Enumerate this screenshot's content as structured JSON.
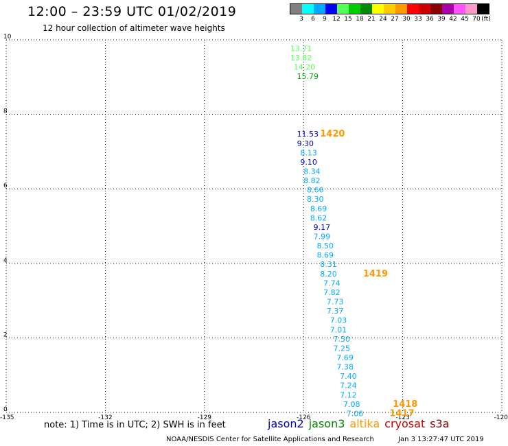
{
  "header": {
    "title": "12:00 – 23:59 UTC 01/02/2019",
    "subtitle": "12 hour collection of altimeter wave heights"
  },
  "colorbar": {
    "unit": "(ft)",
    "labels": [
      "3",
      "6",
      "9",
      "12",
      "15",
      "18",
      "21",
      "24",
      "27",
      "30",
      "33",
      "36",
      "39",
      "42",
      "45",
      "70"
    ],
    "colors": [
      "#808080",
      "#00ffff",
      "#00aaff",
      "#0000ff",
      "#55ff55",
      "#00cc00",
      "#008800",
      "#ffff00",
      "#ffcc00",
      "#ff9900",
      "#ff0000",
      "#cc0000",
      "#880000",
      "#aa00aa",
      "#ff55ff",
      "#ff99cc",
      "#000000"
    ]
  },
  "footer": {
    "note": "note: 1) Time is in UTC; 2) SWH is in feet",
    "legend": [
      {
        "name": "jason2",
        "color": "#0000cc"
      },
      {
        "name": "jason3",
        "color": "#008800"
      },
      {
        "name": "altika",
        "color": "#ff9900"
      },
      {
        "name": "cryosat",
        "color": "#cc0000"
      },
      {
        "name": "s3a",
        "color": "#880000"
      }
    ],
    "credit": "NOAA/NESDIS Center for Satellite Applications and Research",
    "timestamp": "Jan  3 13:27:47 UTC 2019"
  },
  "chart_data": {
    "type": "scatter",
    "xlim": [
      -135,
      -120
    ],
    "ylim": [
      0,
      10
    ],
    "x_ticks": [
      "-135",
      "-132",
      "-129",
      "-126",
      "-123",
      "-120"
    ],
    "y_ticks": [
      "0",
      "2",
      "4",
      "6",
      "8",
      "10"
    ],
    "grid": true,
    "points": [
      {
        "x": -126.4,
        "y": 9.7,
        "label": "13.71",
        "color": "#55ff55"
      },
      {
        "x": -126.4,
        "y": 9.45,
        "label": "13.82",
        "color": "#55ff55"
      },
      {
        "x": -126.3,
        "y": 9.2,
        "label": "14.20",
        "color": "#55ff55"
      },
      {
        "x": -126.2,
        "y": 8.95,
        "label": "15.79",
        "color": "#00aa00"
      },
      {
        "x": -126.2,
        "y": 7.4,
        "label": "11.53",
        "color": "#0000cc"
      },
      {
        "x": -126.2,
        "y": 7.15,
        "label": "9.30",
        "color": "#0000cc"
      },
      {
        "x": -126.1,
        "y": 6.9,
        "label": "8.13",
        "color": "#00aaff"
      },
      {
        "x": -126.1,
        "y": 6.65,
        "label": "9.10",
        "color": "#0000cc"
      },
      {
        "x": -126.0,
        "y": 6.4,
        "label": "8.34",
        "color": "#00aaff"
      },
      {
        "x": -126.0,
        "y": 6.15,
        "label": "8.82",
        "color": "#00aaff"
      },
      {
        "x": -125.9,
        "y": 5.9,
        "label": "8.66",
        "color": "#00aaff"
      },
      {
        "x": -125.9,
        "y": 5.65,
        "label": "8.30",
        "color": "#00aaff"
      },
      {
        "x": -125.8,
        "y": 5.4,
        "label": "8.69",
        "color": "#00aaff"
      },
      {
        "x": -125.8,
        "y": 5.15,
        "label": "8.62",
        "color": "#00aaff"
      },
      {
        "x": -125.7,
        "y": 4.9,
        "label": "9.17",
        "color": "#0000cc"
      },
      {
        "x": -125.7,
        "y": 4.65,
        "label": "7.99",
        "color": "#00aaff"
      },
      {
        "x": -125.6,
        "y": 4.4,
        "label": "8.50",
        "color": "#00aaff"
      },
      {
        "x": -125.6,
        "y": 4.15,
        "label": "8.69",
        "color": "#00aaff"
      },
      {
        "x": -125.5,
        "y": 3.9,
        "label": "8.31",
        "color": "#00aaff"
      },
      {
        "x": -125.5,
        "y": 3.65,
        "label": "8.20",
        "color": "#00aaff"
      },
      {
        "x": -125.4,
        "y": 3.4,
        "label": "7.74",
        "color": "#00aaff"
      },
      {
        "x": -125.4,
        "y": 3.15,
        "label": "7.82",
        "color": "#00aaff"
      },
      {
        "x": -125.3,
        "y": 2.9,
        "label": "7.73",
        "color": "#00aaff"
      },
      {
        "x": -125.3,
        "y": 2.65,
        "label": "7.37",
        "color": "#00aaff"
      },
      {
        "x": -125.2,
        "y": 2.4,
        "label": "7.03",
        "color": "#00aaff"
      },
      {
        "x": -125.2,
        "y": 2.15,
        "label": "7.01",
        "color": "#00aaff"
      },
      {
        "x": -125.1,
        "y": 1.9,
        "label": "7.50",
        "color": "#00aaff"
      },
      {
        "x": -125.1,
        "y": 1.65,
        "label": "7.25",
        "color": "#00aaff"
      },
      {
        "x": -125.0,
        "y": 1.4,
        "label": "7.69",
        "color": "#00aaff"
      },
      {
        "x": -125.0,
        "y": 1.15,
        "label": "7.38",
        "color": "#00aaff"
      },
      {
        "x": -124.9,
        "y": 0.9,
        "label": "7.40",
        "color": "#00aaff"
      },
      {
        "x": -124.9,
        "y": 0.65,
        "label": "7.24",
        "color": "#00aaff"
      },
      {
        "x": -124.9,
        "y": 0.4,
        "label": "7.12",
        "color": "#00aaff"
      },
      {
        "x": -124.8,
        "y": 0.15,
        "label": "7.08",
        "color": "#00aaff"
      },
      {
        "x": -124.7,
        "y": -0.1,
        "label": "7.06",
        "color": "#00aaff"
      }
    ],
    "time_labels": [
      {
        "x": -125.5,
        "y": 7.4,
        "label": "1420",
        "color": "#ff9900"
      },
      {
        "x": -124.2,
        "y": 3.65,
        "label": "1419",
        "color": "#ff9900"
      },
      {
        "x": -123.3,
        "y": 0.15,
        "label": "1418",
        "color": "#ff9900"
      },
      {
        "x": -123.4,
        "y": -0.1,
        "label": "1417",
        "color": "#ff9900"
      }
    ]
  }
}
